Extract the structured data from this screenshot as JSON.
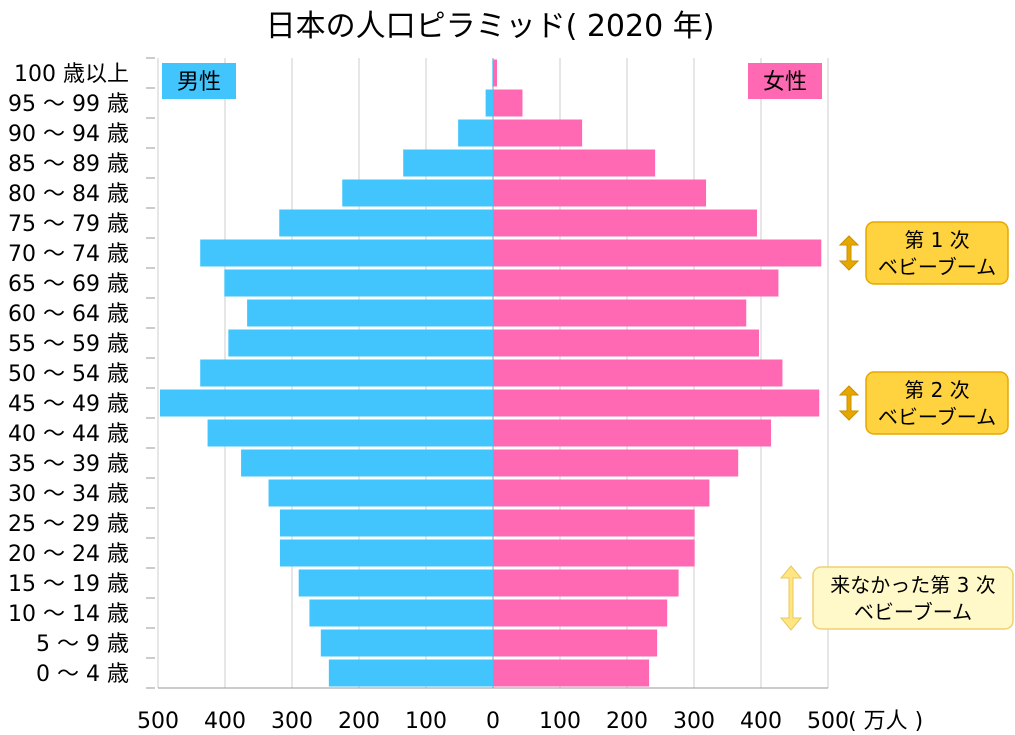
{
  "chart_data": {
    "type": "bar",
    "title": "日本の人口ピラミッド( 2020 年)",
    "unit_label": "( 万人 )",
    "categories": [
      "100 歳以上",
      "95 〜 99 歳",
      "90 〜 94 歳",
      "85 〜 89 歳",
      "80 〜 84 歳",
      "75 〜 79 歳",
      "70 〜 74 歳",
      "65 〜 69 歳",
      "60 〜 64 歳",
      "55 〜 59 歳",
      "50 〜 54 歳",
      "45 〜 49 歳",
      "40 〜 44 歳",
      "35 〜 39 歳",
      "30 〜 34 歳",
      "25 〜 29 歳",
      "20 〜 24 歳",
      "15 〜 19 歳",
      "10 〜 14 歳",
      "5 〜 9 歳",
      "0 〜 4 歳"
    ],
    "series": [
      {
        "name": "男性",
        "color": "#42c5fc",
        "values": [
          1,
          11,
          52,
          134,
          225,
          319,
          437,
          401,
          367,
          395,
          437,
          497,
          426,
          376,
          335,
          318,
          318,
          290,
          274,
          257,
          245
        ]
      },
      {
        "name": "女性",
        "color": "#ff69b4",
        "values": [
          6,
          44,
          133,
          242,
          318,
          394,
          490,
          426,
          378,
          397,
          432,
          487,
          415,
          366,
          323,
          301,
          301,
          277,
          260,
          245,
          233
        ]
      }
    ],
    "xlim": [
      -500,
      500
    ],
    "xticks": [
      "500",
      "400",
      "300",
      "200",
      "100",
      "0",
      "100",
      "200",
      "300",
      "400",
      "500"
    ],
    "grid": "vertical",
    "callouts": [
      {
        "lines": [
          "第 1 次",
          "ベビーブーム"
        ],
        "bg": "#ffd23f",
        "border": "#e6a800",
        "arrow": "#e6a800",
        "row": 6
      },
      {
        "lines": [
          "第 2 次",
          "ベビーブーム"
        ],
        "bg": "#ffd23f",
        "border": "#e6a800",
        "arrow": "#e6a800",
        "row": 11
      },
      {
        "lines": [
          "来なかった第 3 次",
          "ベビーブーム"
        ],
        "bg": "#fff8c8",
        "border": "#f0d070",
        "arrow": "#ffe680",
        "row": 17.5
      }
    ]
  }
}
